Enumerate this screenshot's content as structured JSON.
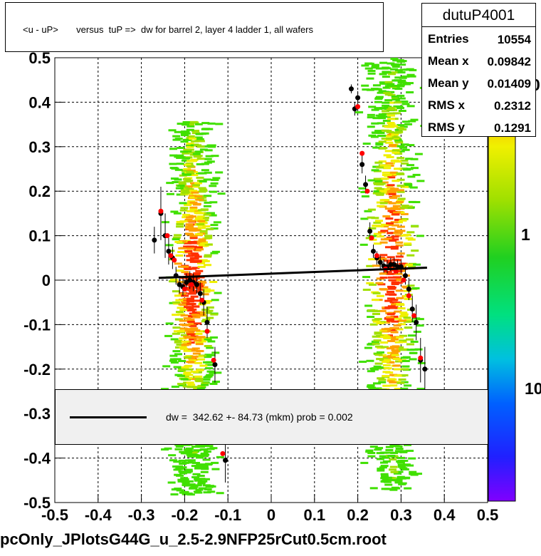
{
  "chart_data": {
    "type": "scatter",
    "title": "<u - uP>       versus  tuP =>  dw for barrel 2, layer 4 ladder 1, all wafers",
    "xlabel": "",
    "ylabel": "",
    "xlim": [
      -0.5,
      0.5
    ],
    "ylim": [
      -0.5,
      0.5
    ],
    "x_ticks": [
      "-0.5",
      "-0.4",
      "-0.3",
      "-0.2",
      "-0.1",
      "0",
      "0.1",
      "0.2",
      "0.3",
      "0.4",
      "0.5"
    ],
    "y_ticks": [
      "-0.5",
      "-0.4",
      "-0.3",
      "-0.2",
      "-0.1",
      "0",
      "0.1",
      "0.2",
      "0.3",
      "0.4",
      "0.5"
    ],
    "grid": true,
    "color_scale_labels": [
      "10",
      "1",
      "0"
    ],
    "stats": {
      "name": "dutuP4001",
      "rows": [
        {
          "label": "Entries",
          "value": "10554"
        },
        {
          "label": "Mean x",
          "value": "0.09842"
        },
        {
          "label": "Mean y",
          "value": "0.01409"
        },
        {
          "label": "RMS x",
          "value": "0.2312"
        },
        {
          "label": "RMS y",
          "value": "0.1291"
        }
      ]
    },
    "fit": {
      "x1": -0.26,
      "y1": 0.005,
      "x2": 0.36,
      "y2": 0.028
    },
    "legend_text": "dw =  342.62 +- 84.73 (mkm) prob = 0.002",
    "series": [
      {
        "marker": "black",
        "points": [
          [
            -0.27,
            0.09,
            0.03
          ],
          [
            -0.255,
            0.15,
            0.06
          ],
          [
            -0.245,
            0.1,
            0.05
          ],
          [
            -0.237,
            0.065,
            0.03
          ],
          [
            -0.228,
            0.05,
            0.025
          ],
          [
            -0.22,
            0.01,
            0.02
          ],
          [
            -0.212,
            -0.01,
            0.02
          ],
          [
            -0.204,
            -0.015,
            0.02
          ],
          [
            -0.196,
            -0.005,
            0.02
          ],
          [
            -0.188,
            0.0,
            0.02
          ],
          [
            -0.18,
            -0.005,
            0.02
          ],
          [
            -0.172,
            -0.01,
            0.02
          ],
          [
            -0.164,
            -0.03,
            0.025
          ],
          [
            -0.156,
            -0.05,
            0.03
          ],
          [
            -0.148,
            -0.095,
            0.035
          ],
          [
            -0.13,
            -0.19,
            0.04
          ],
          [
            -0.106,
            -0.405,
            0.05
          ],
          [
            0.185,
            0.43,
            0.01
          ],
          [
            0.193,
            0.385,
            0.015
          ],
          [
            0.2,
            0.41,
            0.015
          ],
          [
            0.21,
            0.26,
            0.02
          ],
          [
            0.218,
            0.215,
            0.02
          ],
          [
            0.228,
            0.11,
            0.02
          ],
          [
            0.236,
            0.065,
            0.015
          ],
          [
            0.244,
            0.05,
            0.015
          ],
          [
            0.252,
            0.04,
            0.015
          ],
          [
            0.26,
            0.032,
            0.015
          ],
          [
            0.268,
            0.03,
            0.015
          ],
          [
            0.276,
            0.035,
            0.015
          ],
          [
            0.284,
            0.035,
            0.015
          ],
          [
            0.292,
            0.03,
            0.015
          ],
          [
            0.3,
            0.03,
            0.015
          ],
          [
            0.31,
            0.01,
            0.02
          ],
          [
            0.318,
            -0.02,
            0.025
          ],
          [
            0.326,
            -0.065,
            0.03
          ],
          [
            0.335,
            -0.095,
            0.04
          ],
          [
            0.345,
            -0.18,
            0.05
          ],
          [
            0.355,
            -0.2,
            0.05
          ]
        ]
      },
      {
        "marker": "red",
        "points": [
          [
            -0.255,
            0.155,
            0.0
          ],
          [
            -0.24,
            0.1,
            0.0
          ],
          [
            -0.232,
            0.055,
            0.0
          ],
          [
            -0.224,
            0.045,
            0.0
          ],
          [
            -0.2,
            -0.02,
            0.0
          ],
          [
            -0.184,
            -0.01,
            0.0
          ],
          [
            -0.16,
            -0.045,
            0.0
          ],
          [
            -0.148,
            -0.115,
            0.0
          ],
          [
            -0.133,
            -0.18,
            0.0
          ],
          [
            -0.112,
            -0.39,
            0.0
          ],
          [
            0.2,
            0.39,
            0.0
          ],
          [
            0.21,
            0.285,
            0.0
          ],
          [
            0.222,
            0.2,
            0.0
          ],
          [
            0.232,
            0.095,
            0.0
          ],
          [
            0.244,
            0.055,
            0.0
          ],
          [
            0.264,
            0.025,
            0.0
          ],
          [
            0.288,
            0.02,
            0.0
          ],
          [
            0.306,
            0.0,
            0.0
          ],
          [
            0.318,
            -0.035,
            0.0
          ],
          [
            0.33,
            -0.08,
            0.0
          ],
          [
            0.345,
            -0.175,
            0.0
          ]
        ]
      }
    ]
  },
  "footer_text": "pcOnly_JPlotsG44G_u_2.5-2.9NFP25rCut0.5cm.root"
}
